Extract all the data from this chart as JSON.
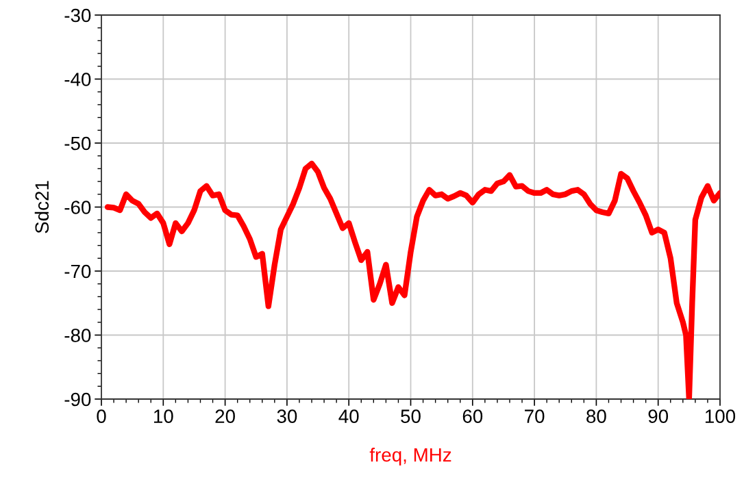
{
  "chart_data": {
    "type": "line",
    "xlabel": "freq, MHz",
    "ylabel": "Sdc21",
    "x": [
      1,
      2,
      3,
      4,
      5,
      6,
      7,
      8,
      9,
      10,
      11,
      12,
      13,
      14,
      15,
      16,
      17,
      18,
      19,
      20,
      21,
      22,
      23,
      24,
      25,
      26,
      27,
      28,
      29,
      30,
      31,
      32,
      33,
      34,
      35,
      36,
      37,
      38,
      39,
      40,
      41,
      42,
      43,
      44,
      45,
      46,
      47,
      48,
      49,
      50,
      51,
      52,
      53,
      54,
      55,
      56,
      57,
      58,
      59,
      60,
      61,
      62,
      63,
      64,
      65,
      66,
      67,
      68,
      69,
      70,
      71,
      72,
      73,
      74,
      75,
      76,
      77,
      78,
      79,
      80,
      81,
      82,
      83,
      84,
      85,
      86,
      87,
      88,
      89,
      90,
      91,
      92,
      93,
      94,
      94.5,
      95,
      95.5,
      96,
      97,
      98,
      99,
      100
    ],
    "series": [
      {
        "color": "#ff0000",
        "values": [
          -60,
          -60.1,
          -60.5,
          -58,
          -59,
          -59.5,
          -60.8,
          -61.7,
          -61,
          -62.5,
          -65.8,
          -62.5,
          -63.8,
          -62.5,
          -60.5,
          -57.5,
          -56.7,
          -58.2,
          -58,
          -60.5,
          -61.2,
          -61.3,
          -63,
          -65,
          -67.8,
          -67.3,
          -75.5,
          -69,
          -63.5,
          -61.5,
          -59.5,
          -57,
          -54,
          -53.2,
          -54.5,
          -57,
          -58.7,
          -61,
          -63.3,
          -62.5,
          -65.5,
          -68.3,
          -67,
          -74.5,
          -72,
          -69,
          -75,
          -72.5,
          -73.8,
          -67,
          -61.5,
          -59,
          -57.3,
          -58.2,
          -58,
          -58.7,
          -58.3,
          -57.8,
          -58.2,
          -59.3,
          -58,
          -57.3,
          -57.5,
          -56.3,
          -56,
          -55,
          -56.8,
          -56.7,
          -57.5,
          -57.8,
          -57.8,
          -57.3,
          -58,
          -58.2,
          -58,
          -57.5,
          -57.3,
          -58,
          -59.5,
          -60.5,
          -60.8,
          -61,
          -59,
          -54.8,
          -55.5,
          -57.5,
          -59.3,
          -61.3,
          -64,
          -63.5,
          -64,
          -68,
          -75,
          -78,
          -80,
          -90,
          -75,
          -62,
          -58.5,
          -56.7,
          -59,
          -57.8
        ]
      }
    ],
    "xlim": [
      0,
      100
    ],
    "ylim": [
      -90,
      -30
    ],
    "xticks": [
      0,
      10,
      20,
      30,
      40,
      50,
      60,
      70,
      80,
      90,
      100
    ],
    "yticks": [
      -90,
      -80,
      -70,
      -60,
      -50,
      -40,
      -30
    ],
    "grid": true,
    "marker": "none",
    "line_style": "solid"
  }
}
